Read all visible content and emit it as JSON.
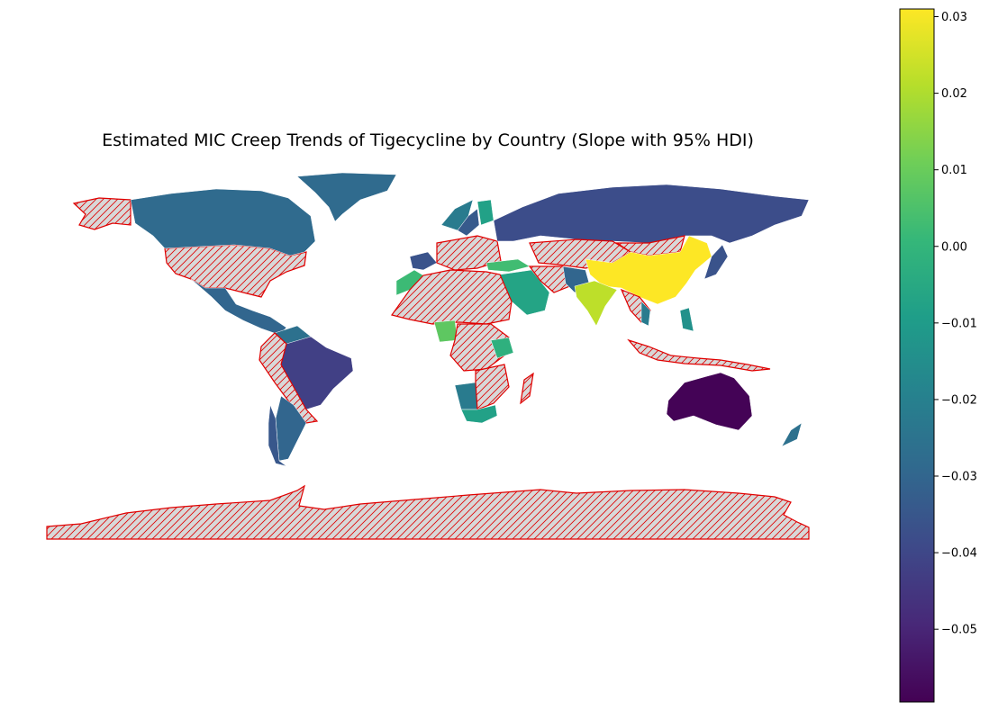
{
  "chart_data": {
    "type": "choropleth",
    "title": "Estimated MIC Creep Trends of Tigecycline by Country (Slope with 95% HDI)",
    "colormap": "viridis",
    "color_range": [
      -0.0595,
      0.031
    ],
    "colorbar_ticks": [
      {
        "value": 0.03,
        "label": "0.03"
      },
      {
        "value": 0.02,
        "label": "0.02"
      },
      {
        "value": 0.01,
        "label": "0.01"
      },
      {
        "value": 0.0,
        "label": "0.00"
      },
      {
        "value": -0.01,
        "label": "−0.01"
      },
      {
        "value": -0.02,
        "label": "−0.02"
      },
      {
        "value": -0.03,
        "label": "−0.03"
      },
      {
        "value": -0.04,
        "label": "−0.04"
      },
      {
        "value": -0.05,
        "label": "−0.05"
      }
    ],
    "no_data_style": {
      "fill": "#d8d8d8",
      "edge": "#e00000",
      "hatch": "///"
    },
    "countries_with_data": [
      {
        "name": "Canada",
        "value": -0.028
      },
      {
        "name": "Greenland",
        "value": -0.028
      },
      {
        "name": "Mexico",
        "value": -0.03
      },
      {
        "name": "Brazil",
        "value": -0.042
      },
      {
        "name": "Argentina",
        "value": -0.03
      },
      {
        "name": "Chile",
        "value": -0.035
      },
      {
        "name": "Venezuela",
        "value": -0.026
      },
      {
        "name": "Russia",
        "value": -0.038
      },
      {
        "name": "China",
        "value": 0.031
      },
      {
        "name": "India",
        "value": 0.022
      },
      {
        "name": "Australia",
        "value": -0.059
      },
      {
        "name": "New Zealand",
        "value": -0.026
      },
      {
        "name": "Japan",
        "value": -0.036
      },
      {
        "name": "Saudi Arabia",
        "value": -0.007
      },
      {
        "name": "Turkey",
        "value": 0.003
      },
      {
        "name": "Nigeria",
        "value": 0.008
      },
      {
        "name": "Angola",
        "value": -0.022
      },
      {
        "name": "South Africa",
        "value": -0.008
      },
      {
        "name": "Norway",
        "value": -0.022
      },
      {
        "name": "Sweden",
        "value": -0.034
      },
      {
        "name": "Finland",
        "value": -0.008
      },
      {
        "name": "France",
        "value": -0.036
      },
      {
        "name": "Morocco",
        "value": 0.002
      },
      {
        "name": "Kenya",
        "value": -0.002
      },
      {
        "name": "Philippines",
        "value": -0.014
      },
      {
        "name": "Vietnam",
        "value": -0.022
      },
      {
        "name": "Pakistan",
        "value": -0.03
      }
    ]
  }
}
